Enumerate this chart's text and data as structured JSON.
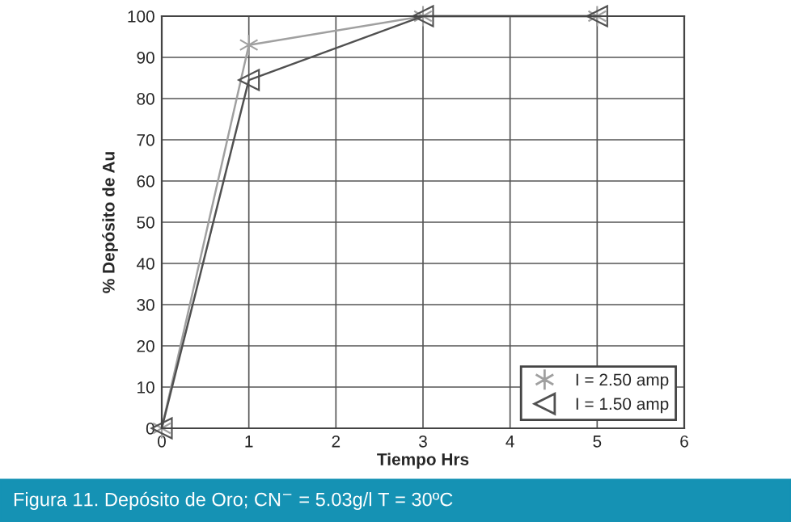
{
  "chart_data": {
    "type": "line",
    "xlabel": "Tiempo Hrs",
    "ylabel": "% Depósito de Au",
    "xlim": [
      0,
      6
    ],
    "xticks": [
      0,
      1,
      2,
      3,
      4,
      5,
      6
    ],
    "ylim": [
      0,
      100
    ],
    "yticks": [
      0,
      10,
      20,
      30,
      40,
      50,
      60,
      70,
      80,
      90,
      100
    ],
    "grid": true,
    "legend": "bottom right",
    "line_style": "solid",
    "series": [
      {
        "name": "I = 2.50 amp",
        "color": "#a0a0a0",
        "marker": "cross",
        "x": [
          0,
          1,
          3,
          5
        ],
        "values": [
          0,
          93,
          100,
          100
        ]
      },
      {
        "name": "I = 1.50 amp",
        "color": "#505050",
        "marker": "triangle",
        "x": [
          0,
          1,
          3,
          5
        ],
        "values": [
          0,
          84.5,
          100,
          100
        ]
      }
    ],
    "annotations": [
      "Figura 11. Depósito de Oro; CN$^{−}$ = 5.03g/l T = 30ºC"
    ]
  }
}
